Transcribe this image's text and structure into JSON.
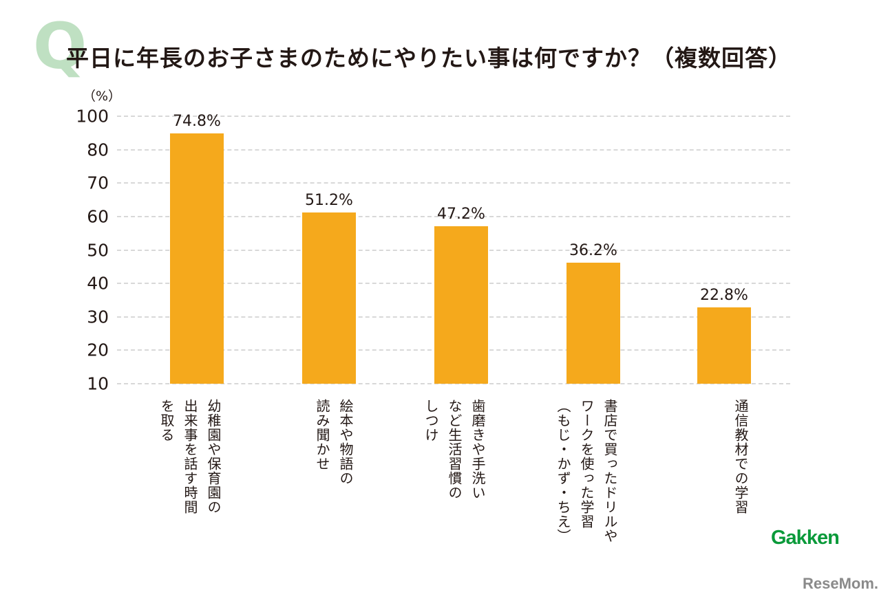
{
  "chart_data": {
    "type": "bar",
    "title": "平日に年長のお子さまのためにやりたい事は何ですか？（複数回答）",
    "title_mark": "Q",
    "ylabel": "（%）",
    "ytick_labels": [
      "10",
      "20",
      "30",
      "40",
      "50",
      "60",
      "70",
      "80",
      "100"
    ],
    "categories": [
      "幼稚園や保育園の\n出来事を話す時間\nを取る",
      "絵本や物語の\n読み聞かせ",
      "歯磨きや手洗い\nなど生活習慣の\nしつけ",
      "書店で買ったドリルや\nワークを使った学習\n（もじ・かず・ちえ）",
      "通信教材での学習"
    ],
    "values": [
      74.8,
      51.2,
      47.2,
      36.2,
      22.8
    ],
    "data_labels": [
      "74.8%",
      "51.2%",
      "47.2%",
      "36.2%",
      "22.8%"
    ],
    "grid": true,
    "bar_color": "#f5a91c",
    "title_mark_color": "#bfe0c2"
  },
  "logos": {
    "gakken": "Gakken",
    "resemom": "ReseMom"
  }
}
